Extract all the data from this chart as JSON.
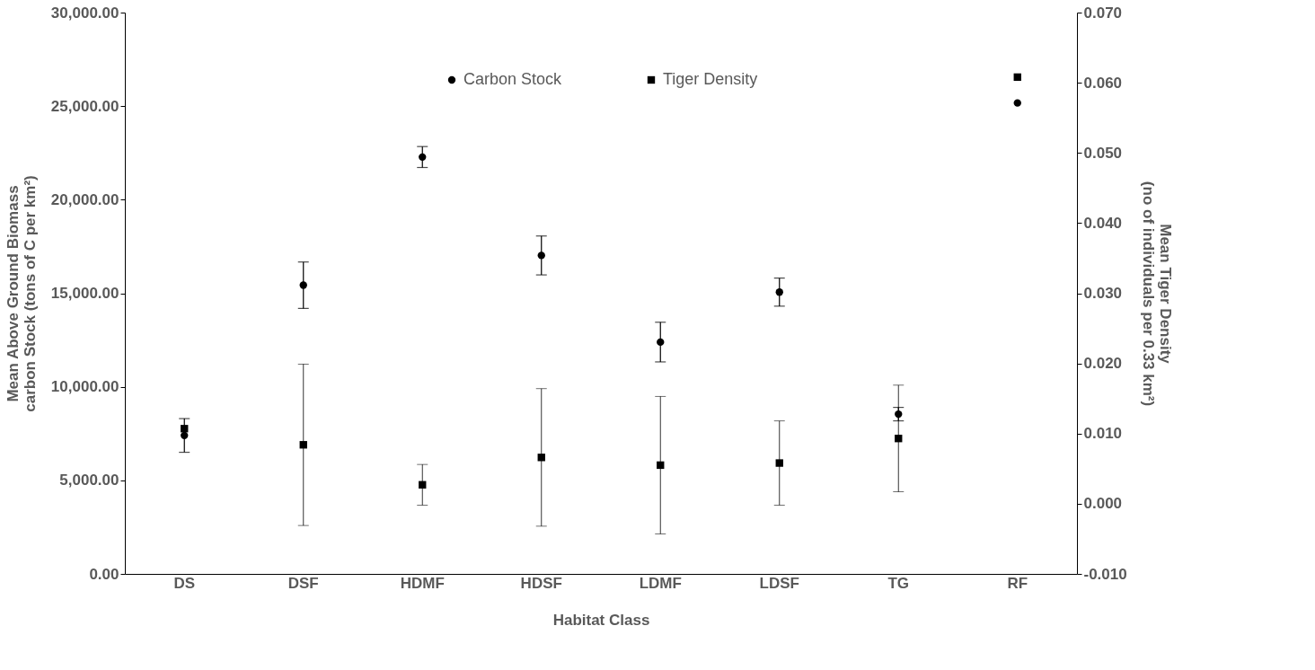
{
  "chart_data": {
    "type": "scatter",
    "xlabel": "Habitat Class",
    "ylabel": "Mean Above Ground Biomass\ncarbon Stock (tons of C per km²)",
    "y2label": "Mean Tiger Density\n(no of individuals  per 0.33 km²)",
    "categories": [
      "DS",
      "DSF",
      "HDMF",
      "HDSF",
      "LDMF",
      "LDSF",
      "TG",
      "RF"
    ],
    "series": [
      {
        "name": "Carbon Stock",
        "color": "#000000",
        "marker": "circle",
        "values": [
          7400,
          15430,
          22280,
          17020,
          12390,
          15060,
          8540,
          25170
        ],
        "errors": [
          900,
          1240,
          560,
          1040,
          1060,
          750,
          360,
          null
        ]
      },
      {
        "name": "Tiger Density",
        "color": "#000000",
        "marker": "square",
        "axis": "y2",
        "values": [
          0.0107,
          0.0084,
          0.0027,
          0.0066,
          0.0055,
          0.0058,
          0.0093,
          0.0608
        ],
        "errors": [
          null,
          0.0115,
          0.0029,
          0.0098,
          0.0098,
          0.006,
          0.0076,
          null
        ]
      }
    ],
    "ylim": [
      0,
      30000
    ],
    "yticks": [
      {
        "value": 0,
        "label": "0.00"
      },
      {
        "value": 5000,
        "label": "5,000.00"
      },
      {
        "value": 10000,
        "label": "10,000.00"
      },
      {
        "value": 15000,
        "label": "15,000.00"
      },
      {
        "value": 20000,
        "label": "20,000.00"
      },
      {
        "value": 25000,
        "label": "25,000.00"
      },
      {
        "value": 30000,
        "label": "30,000.00"
      }
    ],
    "y2lim": [
      -0.01,
      0.07
    ],
    "y2ticks": [
      {
        "value": -0.01,
        "label": "-0.010"
      },
      {
        "value": 0,
        "label": "0.000"
      },
      {
        "value": 0.01,
        "label": "0.010"
      },
      {
        "value": 0.02,
        "label": "0.020"
      },
      {
        "value": 0.03,
        "label": "0.030"
      },
      {
        "value": 0.04,
        "label": "0.040"
      },
      {
        "value": 0.05,
        "label": "0.050"
      },
      {
        "value": 0.06,
        "label": "0.060"
      },
      {
        "value": 0.07,
        "label": "0.070"
      }
    ],
    "grid": false,
    "legend": "top"
  }
}
